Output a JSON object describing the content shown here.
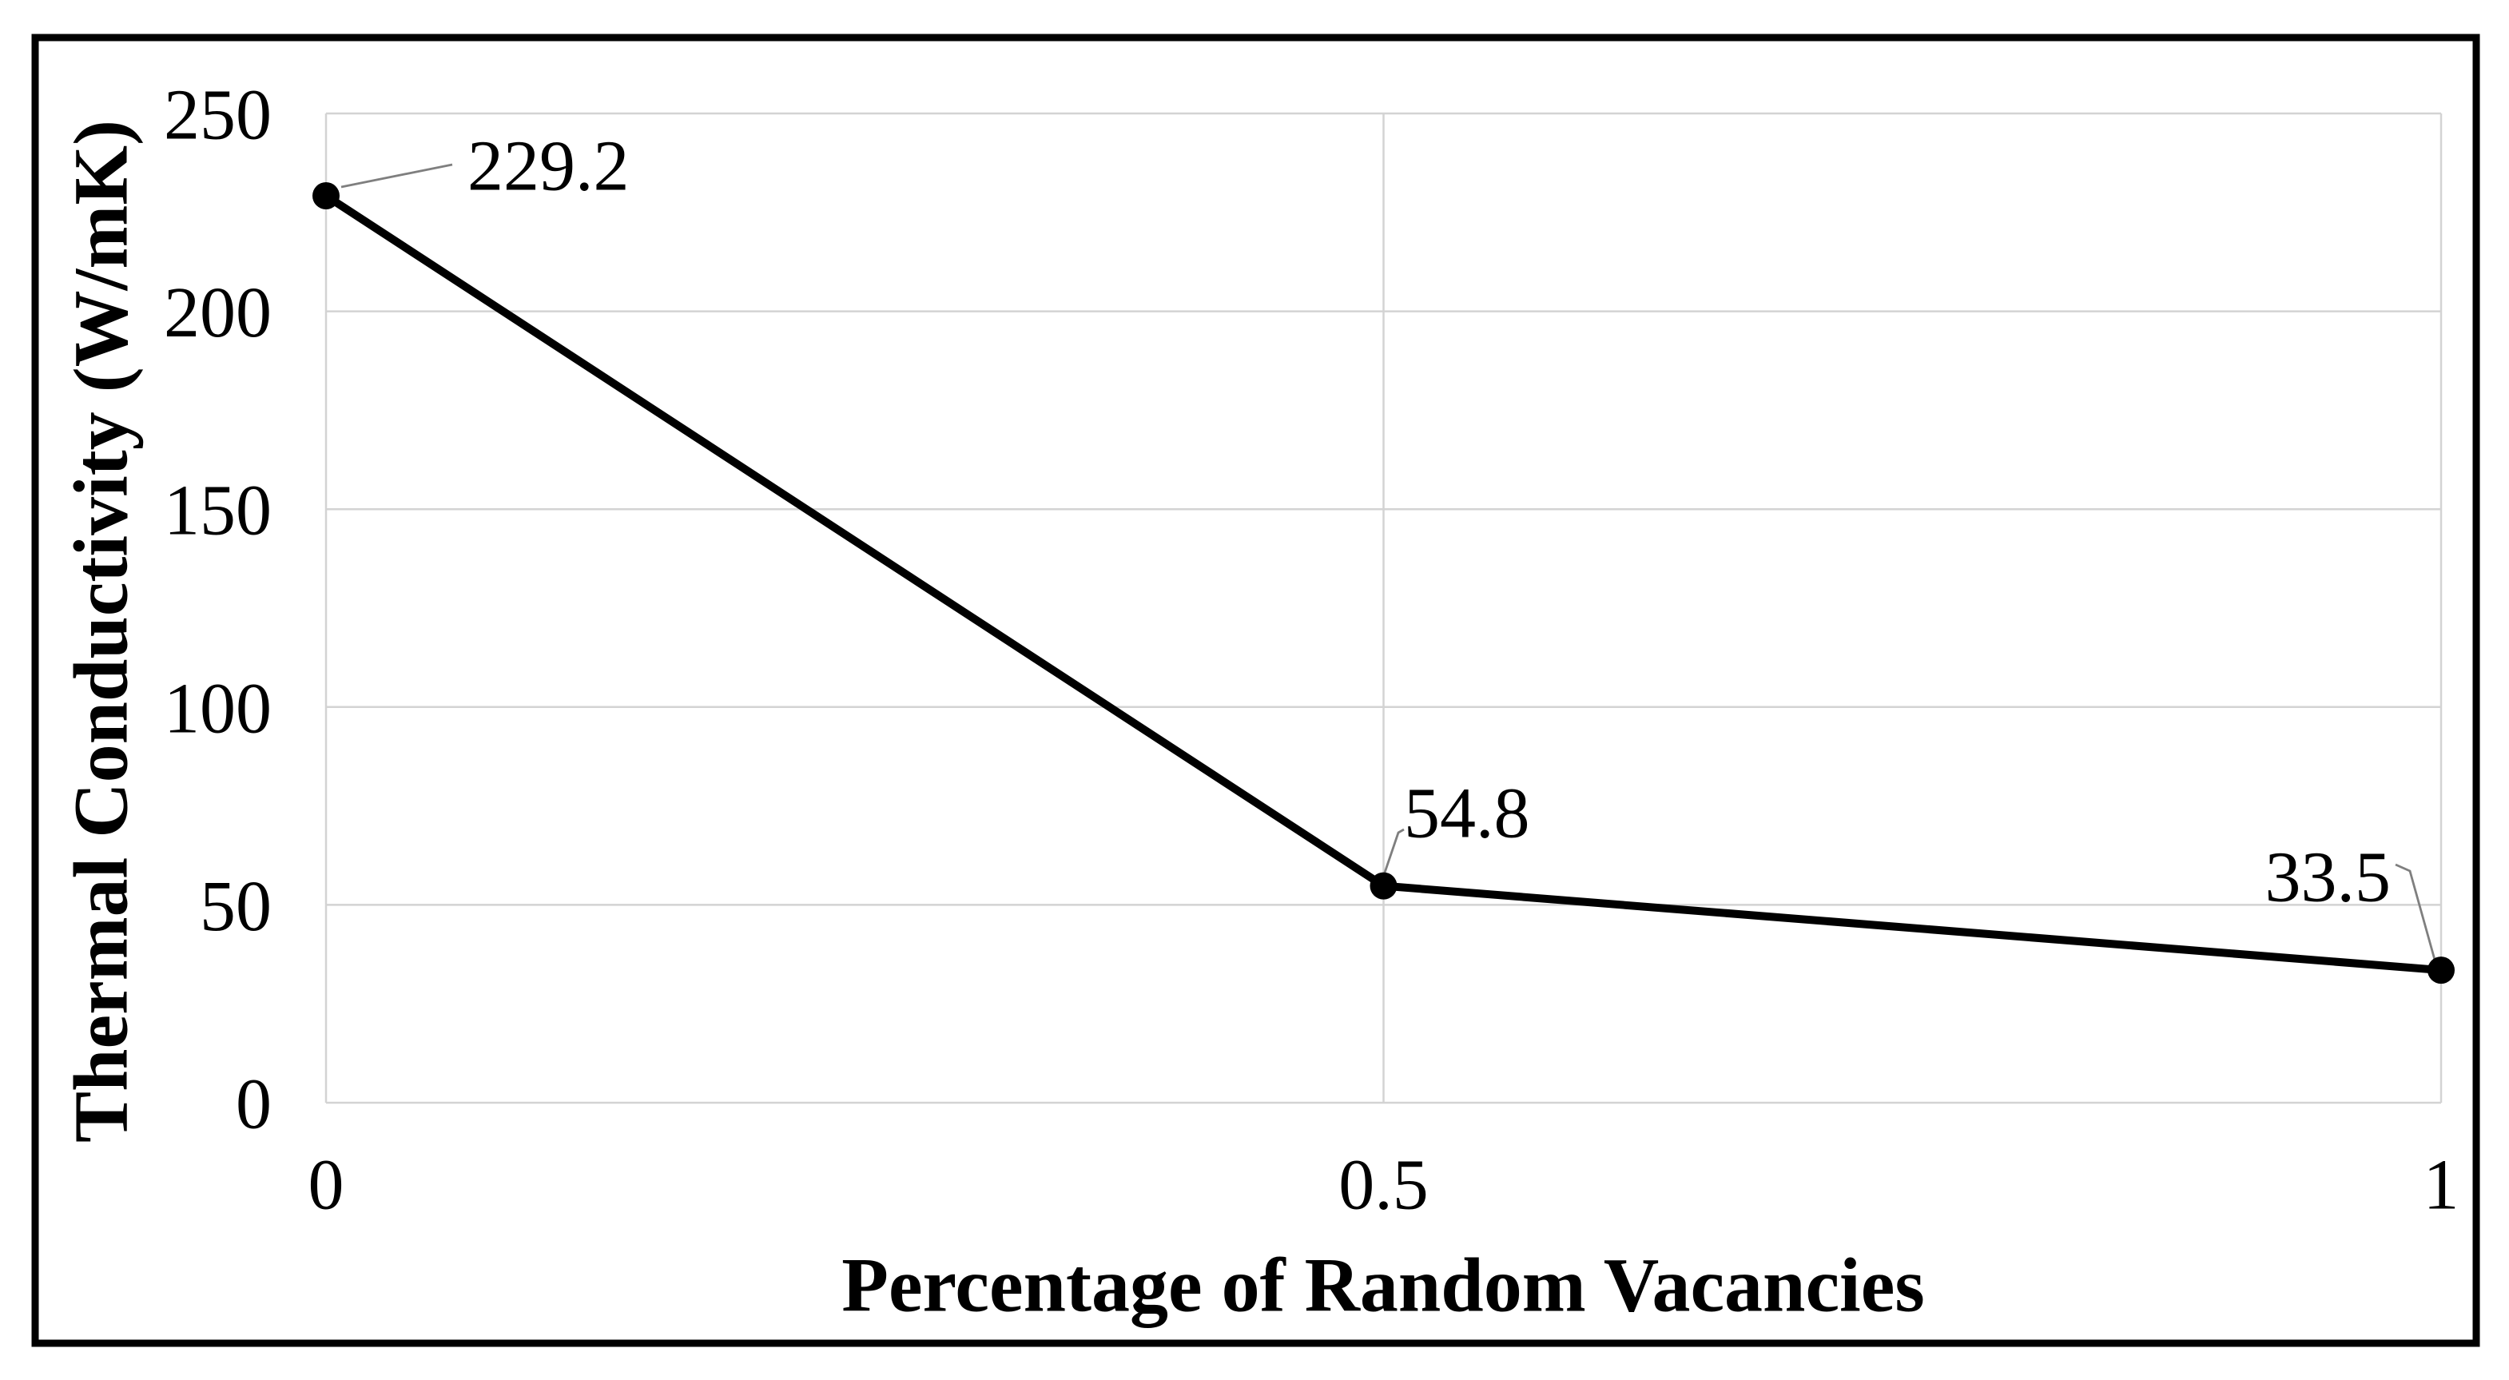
{
  "figure": {
    "background": "#ffffff",
    "border_color": "#000000"
  },
  "chart_data": {
    "type": "line",
    "title": "",
    "xlabel": "Percentage of Random Vacancies",
    "ylabel": "Thermal Conductivity (W/mK)",
    "x": [
      0,
      0.5,
      1
    ],
    "series": [
      {
        "name": "Thermal Conductivity (W/mK)",
        "values": [
          229.2,
          54.8,
          33.5
        ]
      }
    ],
    "point_labels": [
      "229.2",
      "54.8",
      "33.5"
    ],
    "x_ticks": [
      0,
      0.5,
      1
    ],
    "x_tick_labels": [
      "0",
      "0.5",
      "1"
    ],
    "y_ticks": [
      0,
      50,
      100,
      150,
      200,
      250
    ],
    "y_tick_labels": [
      "0",
      "50",
      "100",
      "150",
      "200",
      "250"
    ],
    "xlim": [
      0,
      1
    ],
    "ylim": [
      0,
      250
    ],
    "grid": true,
    "legend_position": "none",
    "colors": {
      "line": "#000000",
      "marker": "#000000",
      "gridline": "#d3d3d3",
      "leader_line": "#7f7f7f",
      "text": "#000000",
      "border": "#000000"
    }
  }
}
